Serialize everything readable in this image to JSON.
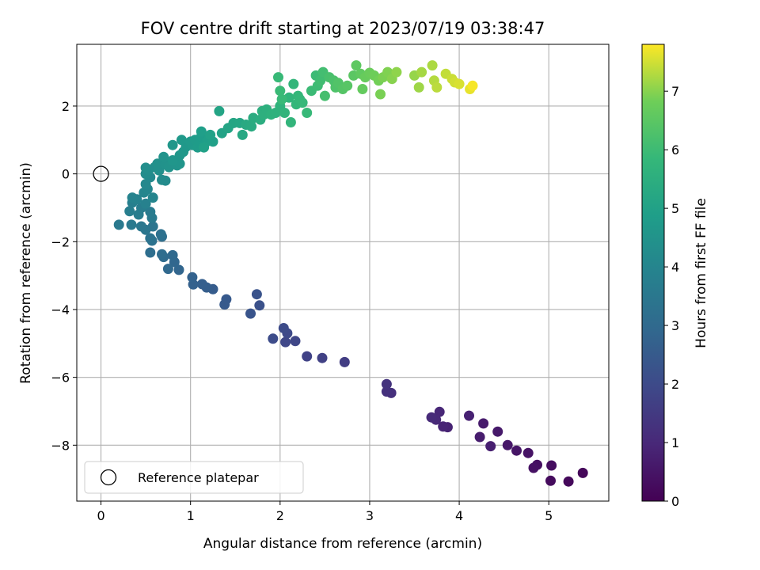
{
  "chart_data": {
    "type": "scatter",
    "title": "FOV centre drift starting at 2023/07/19 03:38:47",
    "xlabel": "Angular distance from reference (arcmin)",
    "ylabel": "Rotation from reference (arcmin)",
    "xlim": [
      -0.27,
      5.67
    ],
    "ylim": [
      -9.65,
      3.82
    ],
    "x_ticks": [
      0,
      1,
      2,
      3,
      4,
      5
    ],
    "y_ticks": [
      -8,
      -6,
      -4,
      -2,
      0,
      2
    ],
    "grid": true,
    "legend": {
      "placement": "lower-left",
      "label": "Reference platepar"
    },
    "reference_point": {
      "x": 0,
      "y": 0
    },
    "colorbar": {
      "label": "Hours from first FF file",
      "colormap": "viridis",
      "range": [
        0,
        7.8
      ],
      "ticks": [
        0,
        1,
        2,
        3,
        4,
        5,
        6,
        7
      ]
    },
    "points": [
      [
        5.38,
        -8.82,
        0.15
      ],
      [
        5.22,
        -9.07,
        0.2
      ],
      [
        5.02,
        -9.05,
        0.25
      ],
      [
        5.03,
        -8.6,
        0.3
      ],
      [
        4.87,
        -8.58,
        0.35
      ],
      [
        4.83,
        -8.67,
        0.4
      ],
      [
        4.77,
        -8.23,
        0.45
      ],
      [
        4.64,
        -8.16,
        0.5
      ],
      [
        4.54,
        -8.0,
        0.55
      ],
      [
        4.43,
        -7.6,
        0.6
      ],
      [
        4.27,
        -7.36,
        0.65
      ],
      [
        4.23,
        -7.76,
        0.7
      ],
      [
        4.35,
        -8.03,
        0.75
      ],
      [
        4.11,
        -7.13,
        0.8
      ],
      [
        3.87,
        -7.47,
        0.85
      ],
      [
        3.82,
        -7.45,
        0.9
      ],
      [
        3.78,
        -7.02,
        0.95
      ],
      [
        3.74,
        -7.25,
        1.0
      ],
      [
        3.69,
        -7.18,
        1.05
      ],
      [
        3.24,
        -6.46,
        1.2
      ],
      [
        3.19,
        -6.42,
        1.25
      ],
      [
        3.19,
        -6.2,
        1.3
      ],
      [
        2.72,
        -5.55,
        1.6
      ],
      [
        2.47,
        -5.43,
        1.7
      ],
      [
        2.3,
        -5.38,
        1.75
      ],
      [
        2.17,
        -4.93,
        1.85
      ],
      [
        2.06,
        -4.96,
        1.9
      ],
      [
        2.08,
        -4.7,
        1.95
      ],
      [
        2.04,
        -4.55,
        2.0
      ],
      [
        1.92,
        -4.86,
        2.05
      ],
      [
        1.77,
        -3.88,
        2.2
      ],
      [
        1.74,
        -3.55,
        2.25
      ],
      [
        1.67,
        -4.12,
        2.3
      ],
      [
        1.4,
        -3.7,
        2.45
      ],
      [
        1.38,
        -3.85,
        2.5
      ],
      [
        1.25,
        -3.4,
        2.55
      ],
      [
        1.18,
        -3.35,
        2.6
      ],
      [
        1.13,
        -3.25,
        2.65
      ],
      [
        1.03,
        -3.26,
        2.7
      ],
      [
        1.02,
        -3.05,
        2.75
      ],
      [
        0.87,
        -2.83,
        2.85
      ],
      [
        0.82,
        -2.6,
        2.9
      ],
      [
        0.75,
        -2.8,
        2.95
      ],
      [
        0.8,
        -2.4,
        3.0
      ],
      [
        0.7,
        -2.45,
        3.05
      ],
      [
        0.68,
        -2.37,
        3.1
      ],
      [
        0.55,
        -2.32,
        3.15
      ],
      [
        0.68,
        -1.85,
        3.2
      ],
      [
        0.67,
        -1.78,
        3.25
      ],
      [
        0.57,
        -1.97,
        3.3
      ],
      [
        0.55,
        -1.9,
        3.35
      ],
      [
        0.58,
        -1.55,
        3.4
      ],
      [
        0.5,
        -1.65,
        3.45
      ],
      [
        0.45,
        -1.55,
        3.5
      ],
      [
        0.34,
        -1.5,
        3.55
      ],
      [
        0.2,
        -1.5,
        3.58
      ],
      [
        0.57,
        -1.3,
        3.6
      ],
      [
        0.55,
        -1.12,
        3.65
      ],
      [
        0.45,
        -1.0,
        3.7
      ],
      [
        0.42,
        -1.2,
        3.72
      ],
      [
        0.32,
        -1.1,
        3.75
      ],
      [
        0.35,
        -0.85,
        3.8
      ],
      [
        0.5,
        -0.88,
        3.85
      ],
      [
        0.4,
        -0.75,
        3.9
      ],
      [
        0.35,
        -0.7,
        3.95
      ],
      [
        0.48,
        -0.55,
        4.0
      ],
      [
        0.58,
        -0.7,
        4.02
      ],
      [
        0.52,
        -0.45,
        4.05
      ],
      [
        0.5,
        -0.3,
        4.1
      ],
      [
        0.55,
        -0.1,
        4.15
      ],
      [
        0.68,
        -0.18,
        4.2
      ],
      [
        0.72,
        -0.2,
        4.22
      ],
      [
        0.5,
        0.0,
        4.25
      ],
      [
        0.53,
        0.1,
        4.3
      ],
      [
        0.5,
        0.18,
        4.32
      ],
      [
        0.6,
        0.2,
        4.35
      ],
      [
        0.65,
        0.1,
        4.38
      ],
      [
        0.68,
        0.3,
        4.4
      ],
      [
        0.63,
        0.3,
        4.42
      ],
      [
        0.72,
        0.28,
        4.45
      ],
      [
        0.76,
        0.2,
        4.48
      ],
      [
        0.7,
        0.5,
        4.5
      ],
      [
        0.85,
        0.25,
        4.52
      ],
      [
        0.88,
        0.3,
        4.55
      ],
      [
        0.8,
        0.4,
        4.58
      ],
      [
        0.88,
        0.55,
        4.6
      ],
      [
        0.8,
        0.85,
        4.62
      ],
      [
        0.92,
        0.65,
        4.65
      ],
      [
        0.95,
        0.8,
        4.68
      ],
      [
        0.9,
        1.0,
        4.7
      ],
      [
        1.0,
        0.95,
        4.72
      ],
      [
        1.02,
        0.85,
        4.75
      ],
      [
        1.05,
        1.0,
        4.78
      ],
      [
        1.08,
        0.78,
        4.8
      ],
      [
        1.1,
        0.9,
        4.82
      ],
      [
        1.12,
        1.1,
        4.84
      ],
      [
        1.15,
        0.85,
        4.86
      ],
      [
        1.18,
        0.95,
        4.88
      ],
      [
        1.12,
        1.25,
        4.9
      ],
      [
        1.2,
        1.0,
        4.92
      ],
      [
        1.25,
        0.95,
        4.95
      ],
      [
        1.15,
        0.78,
        4.98
      ],
      [
        1.22,
        1.15,
        5.0
      ],
      [
        1.35,
        1.2,
        5.05
      ],
      [
        1.32,
        1.85,
        5.1
      ],
      [
        1.42,
        1.35,
        5.12
      ],
      [
        1.48,
        1.5,
        5.15
      ],
      [
        1.55,
        1.5,
        5.2
      ],
      [
        1.58,
        1.15,
        5.25
      ],
      [
        1.62,
        1.45,
        5.3
      ],
      [
        1.68,
        1.4,
        5.35
      ],
      [
        1.7,
        1.65,
        5.4
      ],
      [
        1.78,
        1.6,
        5.45
      ],
      [
        1.8,
        1.85,
        5.5
      ],
      [
        1.82,
        1.75,
        5.52
      ],
      [
        1.85,
        1.9,
        5.55
      ],
      [
        1.9,
        1.75,
        5.6
      ],
      [
        1.95,
        1.8,
        5.62
      ],
      [
        2.0,
        2.0,
        5.65
      ],
      [
        2.05,
        1.8,
        5.7
      ],
      [
        2.1,
        2.25,
        5.72
      ],
      [
        2.12,
        1.52,
        5.75
      ],
      [
        2.15,
        2.65,
        5.78
      ],
      [
        2.18,
        2.05,
        5.8
      ],
      [
        2.2,
        2.3,
        5.82
      ],
      [
        2.22,
        2.2,
        5.84
      ],
      [
        2.25,
        2.1,
        5.86
      ],
      [
        2.3,
        1.8,
        5.88
      ],
      [
        1.98,
        2.85,
        5.9
      ],
      [
        2.02,
        2.2,
        5.92
      ],
      [
        2.0,
        2.45,
        5.94
      ],
      [
        2.35,
        2.45,
        5.96
      ],
      [
        2.4,
        2.9,
        5.98
      ],
      [
        2.42,
        2.6,
        6.0
      ],
      [
        2.45,
        2.75,
        6.05
      ],
      [
        2.48,
        3.0,
        6.1
      ],
      [
        2.5,
        2.3,
        6.15
      ],
      [
        2.55,
        2.85,
        6.2
      ],
      [
        2.6,
        2.75,
        6.25
      ],
      [
        2.62,
        2.55,
        6.3
      ],
      [
        2.65,
        2.68,
        6.35
      ],
      [
        2.7,
        2.5,
        6.4
      ],
      [
        2.75,
        2.6,
        6.45
      ],
      [
        2.82,
        2.9,
        6.5
      ],
      [
        2.85,
        3.2,
        6.55
      ],
      [
        2.9,
        2.95,
        6.6
      ],
      [
        2.92,
        2.5,
        6.65
      ],
      [
        2.95,
        2.85,
        6.7
      ],
      [
        3.0,
        2.98,
        6.75
      ],
      [
        3.05,
        2.9,
        6.8
      ],
      [
        3.1,
        2.75,
        6.85
      ],
      [
        3.12,
        2.35,
        6.9
      ],
      [
        3.15,
        2.85,
        6.92
      ],
      [
        3.2,
        3.0,
        6.95
      ],
      [
        3.25,
        2.8,
        7.0
      ],
      [
        3.3,
        3.0,
        7.05
      ],
      [
        3.5,
        2.9,
        7.1
      ],
      [
        3.55,
        2.55,
        7.15
      ],
      [
        3.58,
        3.0,
        7.2
      ],
      [
        3.7,
        3.2,
        7.25
      ],
      [
        3.72,
        2.75,
        7.3
      ],
      [
        3.75,
        2.55,
        7.35
      ],
      [
        3.85,
        2.95,
        7.4
      ],
      [
        3.92,
        2.8,
        7.45
      ],
      [
        3.95,
        2.7,
        7.5
      ],
      [
        4.0,
        2.65,
        7.55
      ],
      [
        4.12,
        2.5,
        7.65
      ],
      [
        4.15,
        2.6,
        7.75
      ]
    ]
  }
}
